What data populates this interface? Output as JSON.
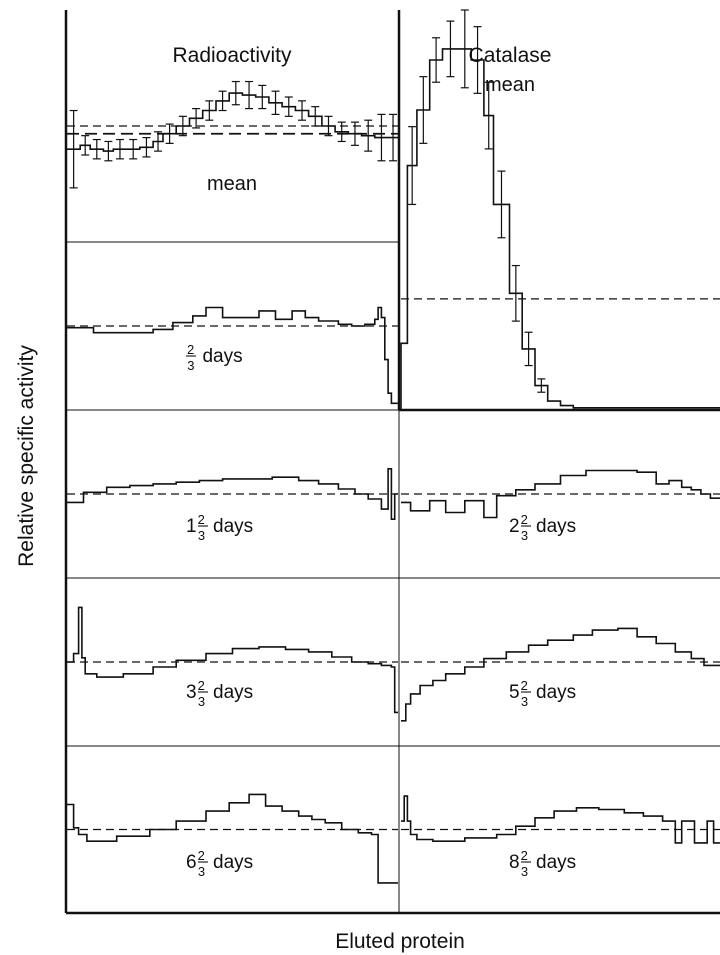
{
  "figure": {
    "xlabel": "Eluted protein",
    "ylabel": "Relative specific activity",
    "baseline_value": 1.0,
    "colors": {
      "line": "#111111",
      "background": "#ffffff"
    }
  },
  "chart_data": [
    {
      "type": "step",
      "id": "radioactivity-mean",
      "title": "Radioactivity",
      "label": "mean",
      "column": "left",
      "y_range": [
        0.4,
        1.6
      ],
      "fractions": [
        0.0,
        0.04,
        0.07,
        0.11,
        0.14,
        0.18,
        0.22,
        0.26,
        0.29,
        0.33,
        0.37,
        0.41,
        0.45,
        0.49,
        0.53,
        0.57,
        0.61,
        0.65,
        0.69,
        0.73,
        0.77,
        0.81,
        0.85,
        0.89,
        0.93,
        0.97,
        1.0
      ],
      "values": [
        0.88,
        0.9,
        0.88,
        0.87,
        0.88,
        0.88,
        0.89,
        0.92,
        0.96,
        1.0,
        1.04,
        1.08,
        1.13,
        1.17,
        1.16,
        1.15,
        1.12,
        1.1,
        1.08,
        1.05,
        1.0,
        0.97,
        0.96,
        0.95,
        0.94,
        0.94
      ],
      "errors": [
        0.2,
        0.05,
        0.05,
        0.05,
        0.05,
        0.05,
        0.05,
        0.05,
        0.05,
        0.05,
        0.05,
        0.05,
        0.05,
        0.06,
        0.07,
        0.06,
        0.06,
        0.05,
        0.05,
        0.05,
        0.05,
        0.05,
        0.06,
        0.08,
        0.12,
        0.12
      ]
    },
    {
      "type": "step",
      "id": "catalase-mean",
      "title": "Catalase",
      "label": "mean",
      "column": "right",
      "y_range": [
        0.0,
        3.6
      ],
      "fractions": [
        0.0,
        0.02,
        0.05,
        0.09,
        0.13,
        0.18,
        0.22,
        0.26,
        0.29,
        0.34,
        0.38,
        0.42,
        0.46,
        0.5,
        0.54,
        1.0
      ],
      "values": [
        0.6,
        2.2,
        2.7,
        3.15,
        3.25,
        3.25,
        3.15,
        2.65,
        1.85,
        1.05,
        0.55,
        0.22,
        0.08,
        0.04,
        0.02
      ],
      "errors": [
        0.0,
        0.35,
        0.3,
        0.2,
        0.25,
        0.35,
        0.3,
        0.3,
        0.3,
        0.25,
        0.15,
        0.06,
        0.0,
        0.0,
        0.0
      ]
    },
    {
      "type": "step",
      "id": "radioactivity-two-thirds",
      "label": "2/3 days",
      "label_parts": {
        "whole": "",
        "num": "2",
        "den": "3",
        "unit": "days"
      },
      "column": "left",
      "y_range": [
        0.0,
        2.0
      ],
      "fractions": [
        0.0,
        0.08,
        0.18,
        0.26,
        0.32,
        0.38,
        0.42,
        0.47,
        0.52,
        0.58,
        0.63,
        0.68,
        0.72,
        0.76,
        0.82,
        0.86,
        0.9,
        0.93,
        0.94,
        0.95,
        0.96,
        0.97,
        0.98,
        1.0
      ],
      "values": [
        0.98,
        0.92,
        0.92,
        0.96,
        1.04,
        1.12,
        1.22,
        1.1,
        1.1,
        1.18,
        1.08,
        1.18,
        1.1,
        1.06,
        1.02,
        1.0,
        1.02,
        1.08,
        1.22,
        1.1,
        0.6,
        0.2,
        0.08
      ],
      "errors": []
    },
    {
      "type": "step",
      "id": "radioactivity-one-two-thirds",
      "label": "1 2/3 days",
      "label_parts": {
        "whole": "1",
        "num": "2",
        "den": "3",
        "unit": "days"
      },
      "column": "left",
      "y_range": [
        0.0,
        2.0
      ],
      "fractions": [
        0.0,
        0.05,
        0.12,
        0.19,
        0.26,
        0.33,
        0.4,
        0.47,
        0.54,
        0.62,
        0.7,
        0.76,
        0.82,
        0.87,
        0.91,
        0.95,
        0.97,
        0.98,
        0.99,
        1.0
      ],
      "values": [
        0.9,
        1.02,
        1.08,
        1.1,
        1.12,
        1.14,
        1.16,
        1.18,
        1.18,
        1.2,
        1.16,
        1.12,
        1.06,
        1.0,
        0.94,
        0.82,
        1.3,
        0.7,
        1.0
      ],
      "errors": []
    },
    {
      "type": "step",
      "id": "radioactivity-two-three-thirds",
      "label": "2 2/3 days",
      "label_parts": {
        "whole": "2",
        "num": "2",
        "den": "3",
        "unit": "days"
      },
      "column": "right",
      "y_range": [
        0.0,
        2.0
      ],
      "fractions": [
        0.0,
        0.03,
        0.09,
        0.14,
        0.2,
        0.26,
        0.3,
        0.36,
        0.42,
        0.5,
        0.58,
        0.66,
        0.74,
        0.8,
        0.84,
        0.88,
        0.91,
        0.94,
        0.97,
        1.0
      ],
      "values": [
        0.9,
        0.8,
        0.92,
        0.78,
        0.92,
        0.72,
        0.98,
        1.05,
        1.12,
        1.22,
        1.28,
        1.28,
        1.26,
        1.12,
        1.16,
        1.08,
        1.05,
        1.0,
        0.95
      ],
      "errors": []
    },
    {
      "type": "step",
      "id": "radioactivity-three-two-thirds",
      "label": "3 2/3 days",
      "label_parts": {
        "whole": "3",
        "num": "2",
        "den": "3",
        "unit": "days"
      },
      "column": "left",
      "y_range": [
        0.0,
        2.0
      ],
      "fractions": [
        0.0,
        0.02,
        0.035,
        0.045,
        0.055,
        0.09,
        0.17,
        0.26,
        0.33,
        0.42,
        0.5,
        0.58,
        0.66,
        0.73,
        0.8,
        0.86,
        0.91,
        0.95,
        0.98,
        0.99,
        1.0
      ],
      "values": [
        1.0,
        1.1,
        1.65,
        1.05,
        0.86,
        0.82,
        0.86,
        0.94,
        1.02,
        1.1,
        1.16,
        1.18,
        1.15,
        1.12,
        1.06,
        1.0,
        0.98,
        0.96,
        0.94,
        0.4
      ],
      "errors": []
    },
    {
      "type": "step",
      "id": "radioactivity-five-two-thirds",
      "label": "5 2/3 days",
      "label_parts": {
        "whole": "5",
        "num": "2",
        "den": "3",
        "unit": "days"
      },
      "column": "right",
      "y_range": [
        0.0,
        2.0
      ],
      "fractions": [
        0.0,
        0.015,
        0.03,
        0.06,
        0.1,
        0.14,
        0.2,
        0.26,
        0.33,
        0.4,
        0.46,
        0.54,
        0.6,
        0.68,
        0.74,
        0.8,
        0.86,
        0.91,
        0.95,
        1.0
      ],
      "values": [
        0.3,
        0.5,
        0.62,
        0.72,
        0.78,
        0.86,
        0.94,
        1.04,
        1.12,
        1.2,
        1.26,
        1.32,
        1.38,
        1.4,
        1.3,
        1.22,
        1.12,
        1.04,
        0.96
      ],
      "errors": []
    },
    {
      "type": "step",
      "id": "radioactivity-six-two-thirds",
      "label": "6 2/3 days",
      "label_parts": {
        "whole": "6",
        "num": "2",
        "den": "3",
        "unit": "days"
      },
      "column": "left",
      "y_range": [
        0.0,
        2.0
      ],
      "fractions": [
        0.0,
        0.02,
        0.035,
        0.06,
        0.15,
        0.25,
        0.33,
        0.42,
        0.49,
        0.55,
        0.6,
        0.65,
        0.7,
        0.74,
        0.78,
        0.83,
        0.88,
        0.92,
        0.94,
        1.0
      ],
      "values": [
        1.3,
        1.02,
        0.94,
        0.86,
        0.92,
        1.0,
        1.1,
        1.22,
        1.32,
        1.42,
        1.28,
        1.22,
        1.16,
        1.12,
        1.08,
        1.0,
        0.96,
        0.94,
        0.36
      ],
      "errors": []
    },
    {
      "type": "step",
      "id": "radioactivity-eight-two-thirds",
      "label": "8 2/3 days",
      "label_parts": {
        "whole": "8",
        "num": "2",
        "den": "3",
        "unit": "days"
      },
      "column": "right",
      "y_range": [
        0.0,
        2.0
      ],
      "fractions": [
        0.0,
        0.01,
        0.02,
        0.03,
        0.05,
        0.1,
        0.2,
        0.3,
        0.36,
        0.42,
        0.48,
        0.55,
        0.62,
        0.7,
        0.76,
        0.82,
        0.86,
        0.88,
        0.92,
        0.96,
        0.98,
        1.0
      ],
      "values": [
        1.1,
        1.4,
        1.1,
        0.94,
        0.88,
        0.86,
        0.9,
        0.94,
        1.04,
        1.14,
        1.22,
        1.26,
        1.24,
        1.2,
        1.16,
        1.1,
        0.84,
        1.1,
        0.84,
        1.1,
        0.84
      ],
      "errors": []
    }
  ]
}
